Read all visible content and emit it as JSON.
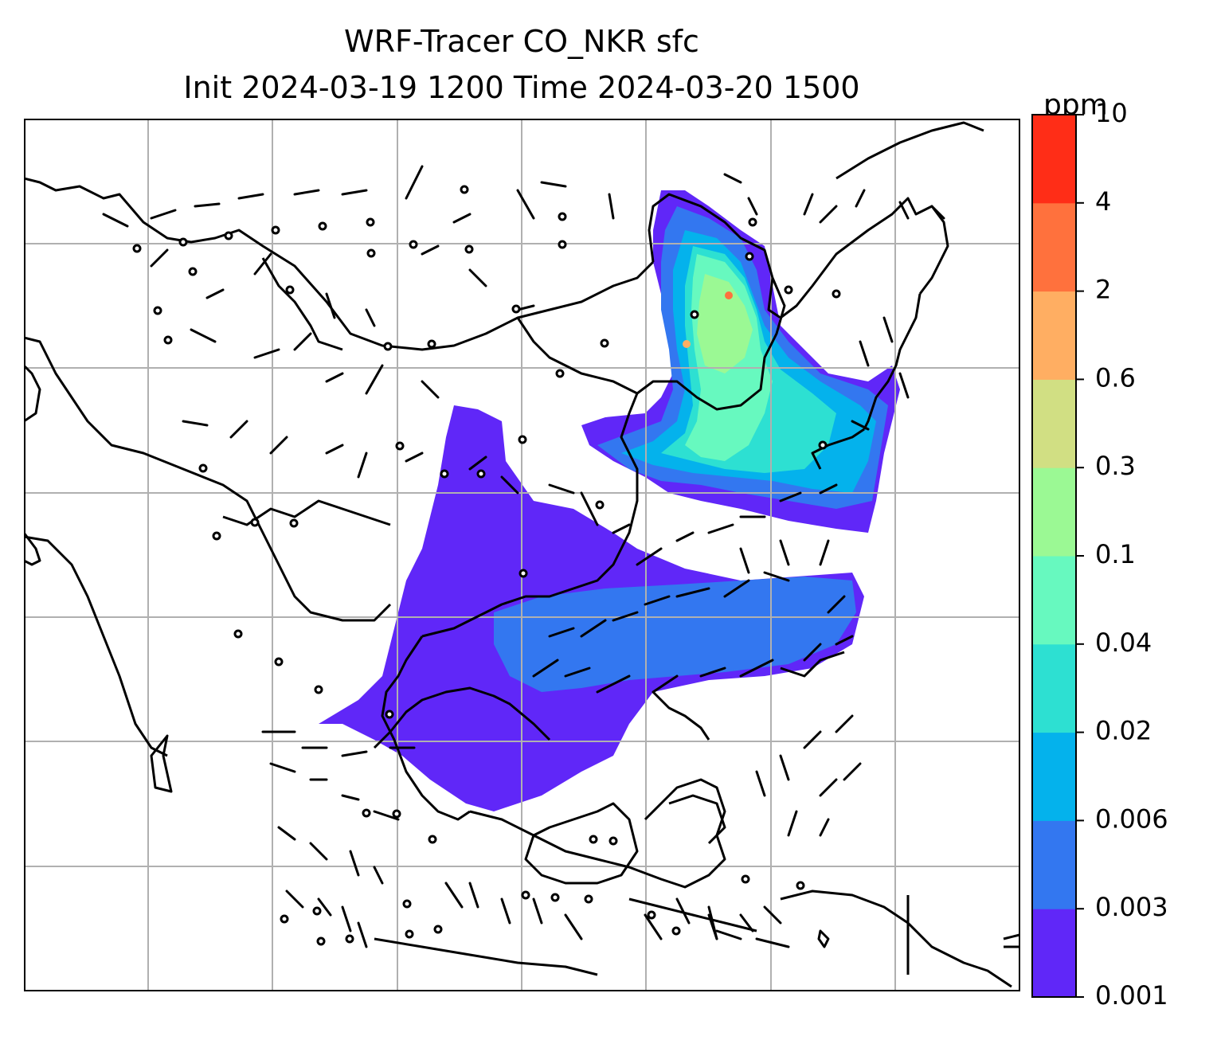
{
  "title": "WRF-Tracer CO_NKR sfc",
  "subtitle": "Init 2024-03-19 1200 Time 2024-03-20 1500",
  "colorbar": {
    "unit": "ppm",
    "levels": [
      "0.001",
      "0.003",
      "0.006",
      "0.02",
      "0.04",
      "0.1",
      "0.3",
      "0.6",
      "2",
      "4",
      "10"
    ],
    "colors": [
      "#6027f8",
      "#3377f0",
      "#04b2ec",
      "#2de0d2",
      "#67f9bf",
      "#9bf994",
      "#d1df83",
      "#ffae62",
      "#ff713d",
      "#ff2d17"
    ]
  },
  "map": {
    "gridlines": true,
    "background": "#ffffff",
    "coastline_color": "#000000",
    "grid_color": "#b0b0b0"
  },
  "chart_data": {
    "type": "heatmap",
    "title": "WRF-Tracer CO_NKR sfc",
    "subtitle": "Init 2024-03-19 1200 Time 2024-03-20 1500",
    "variable": "CO_NKR surface tracer concentration",
    "unit": "ppm",
    "contour_levels": [
      0.001,
      0.003,
      0.006,
      0.02,
      0.04,
      0.1,
      0.3,
      0.6,
      2,
      4,
      10
    ],
    "overlay": "wind barbs",
    "plumes": [
      {
        "region": "northeast",
        "max_level_reached": "2"
      },
      {
        "region": "south-central",
        "max_level_reached": "0.003"
      }
    ]
  }
}
